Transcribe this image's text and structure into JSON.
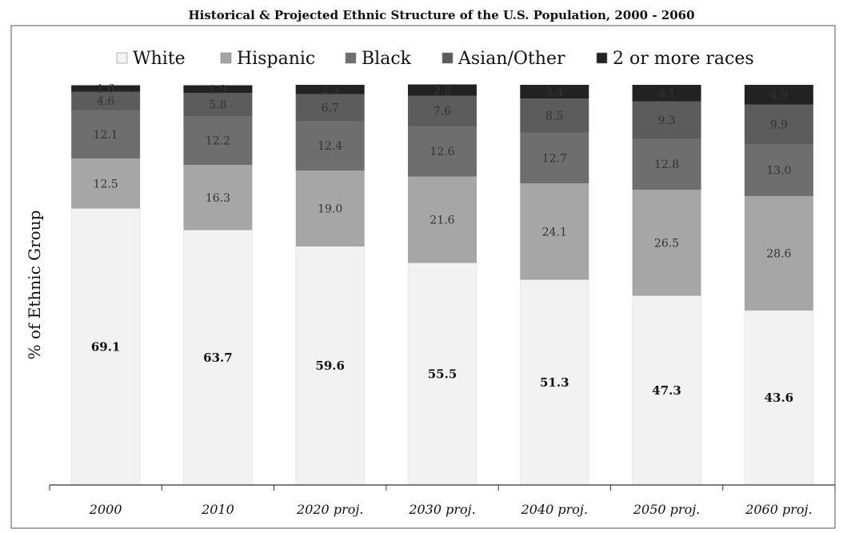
{
  "chart_data": {
    "type": "bar",
    "stacked": true,
    "title": "Historical & Projected Ethnic Structure of the U.S. Population, 2000 - 2060",
    "ylabel": "% of Ethnic Group",
    "xlabel": "",
    "ylim": [
      0,
      100
    ],
    "legend_position": "top",
    "grid": false,
    "categories": [
      "2000",
      "2010",
      "2020 proj.",
      "2030 proj.",
      "2040 proj.",
      "2050 proj.",
      "2060 proj."
    ],
    "series": [
      {
        "name": "White",
        "color": "#f2f2f2",
        "values": [
          69.1,
          63.7,
          59.6,
          55.5,
          51.3,
          47.3,
          43.6
        ]
      },
      {
        "name": "Hispanic",
        "color": "#a6a6a6",
        "values": [
          12.5,
          16.3,
          19.0,
          21.6,
          24.1,
          26.5,
          28.6
        ]
      },
      {
        "name": "Black",
        "color": "#6e6e6e",
        "values": [
          12.1,
          12.2,
          12.4,
          12.6,
          12.7,
          12.8,
          13.0
        ]
      },
      {
        "name": "Asian/Other",
        "color": "#5c5c5c",
        "values": [
          4.6,
          5.8,
          6.7,
          7.6,
          8.5,
          9.3,
          9.9
        ]
      },
      {
        "name": "2 or more races",
        "color": "#222222",
        "values": [
          1.6,
          1.9,
          2.3,
          2.8,
          3.4,
          4.1,
          4.9
        ]
      }
    ],
    "labels": [
      [
        "69.1",
        "63.7",
        "59.6",
        "55.5",
        "51.3",
        "47.3",
        "43.6"
      ],
      [
        "12.5",
        "16.3",
        "19.0",
        "21.6",
        "24.1",
        "26.5",
        "28.6"
      ],
      [
        "12.1",
        "12.2",
        "12.4",
        "12.6",
        "12.7",
        "12.8",
        "13.0"
      ],
      [
        "4.6",
        "5.8",
        "6.7",
        "7.6",
        "8.5",
        "9.3",
        "9.9"
      ],
      [
        "1.6",
        "1.9",
        "2.3",
        "2.8",
        "3.4",
        "4.1",
        "4.9"
      ]
    ]
  }
}
